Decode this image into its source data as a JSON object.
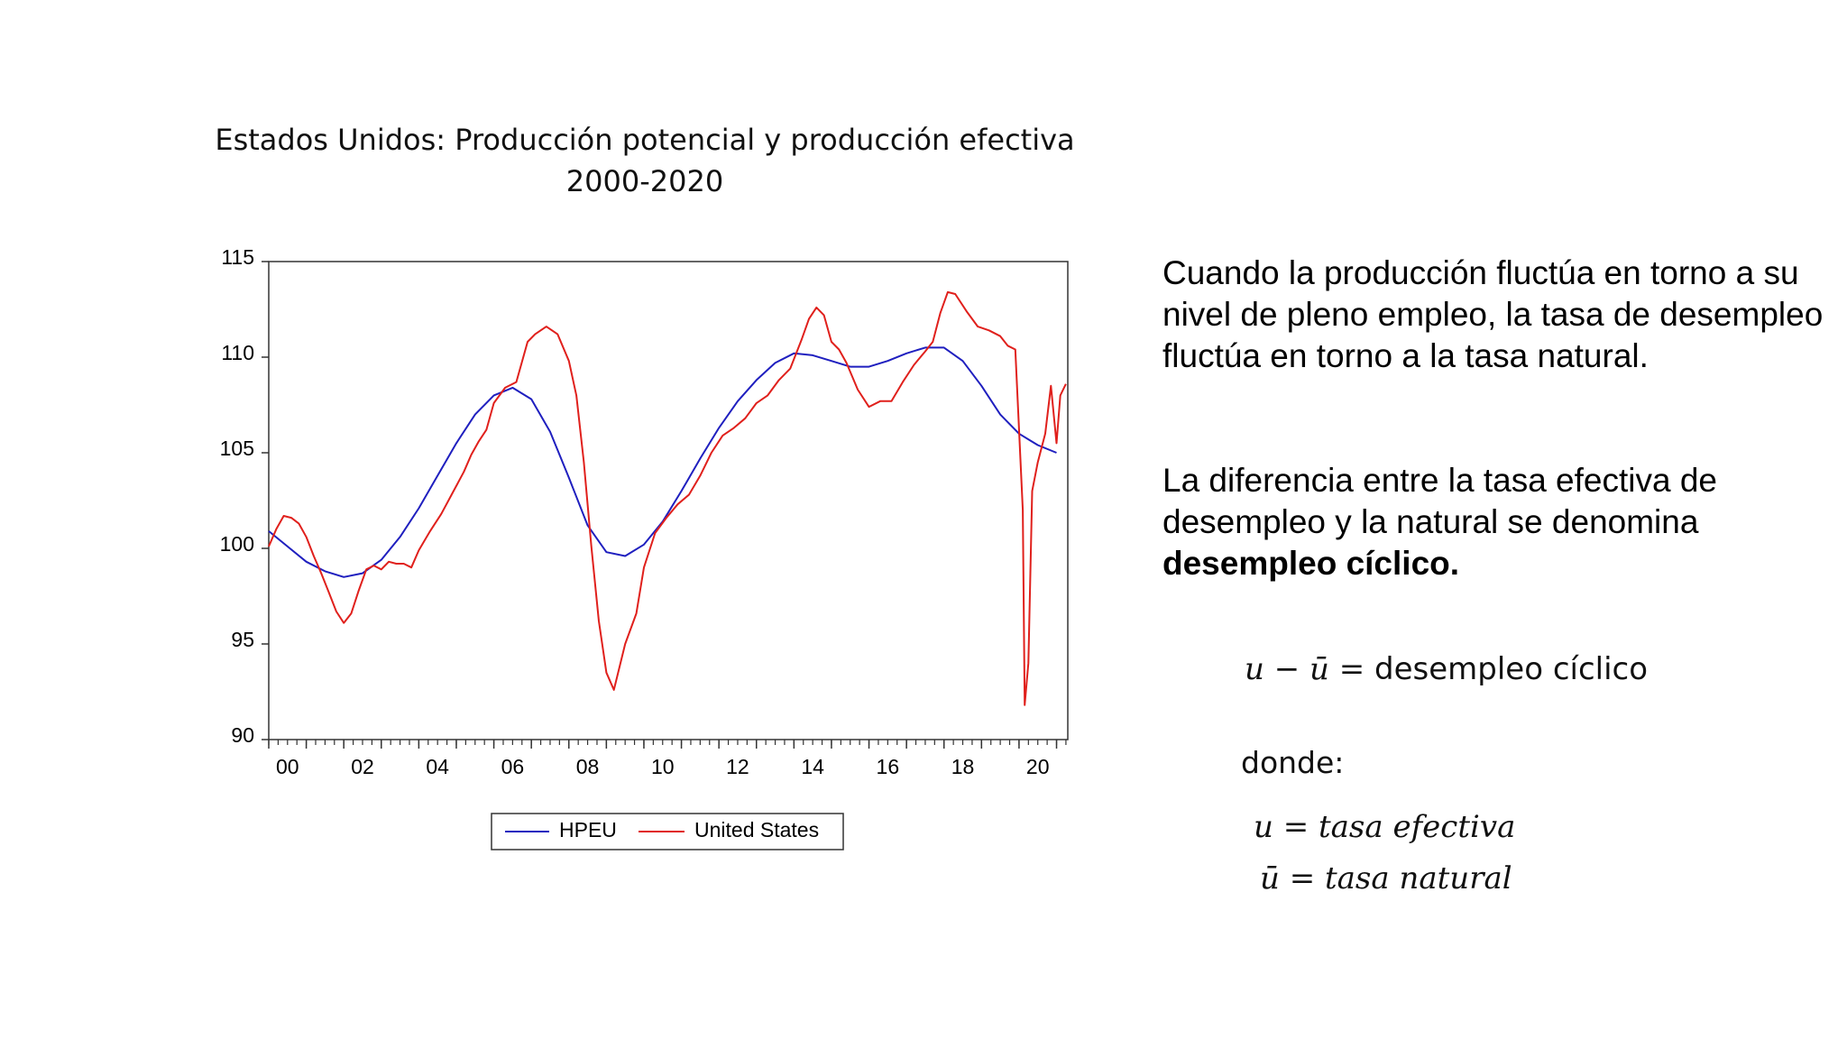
{
  "chart_title_line1": "Estados Unidos: Producción potencial y producción efectiva",
  "chart_title_line2": "2000-2020",
  "paragraph1": "Cuando la producción fluctúa en torno a su nivel de pleno empleo, la tasa de desempleo fluctúa en torno a la tasa natural.",
  "paragraph2_normal": "La diferencia entre la tasa efectiva de desempleo y la natural se denomina ",
  "paragraph2_bold": "desempleo cíclico.",
  "equation_lhs": "u − ū =",
  "equation_rhs": "desempleo cíclico",
  "donde_label": "donde:",
  "def_u": "u = tasa efectiva",
  "def_ubar": "ū = tasa natural",
  "colors": {
    "HPEU": "#1f1fbf",
    "United States": "#e0201c",
    "axis": "#333333"
  },
  "chart_data": {
    "type": "line",
    "title": "Estados Unidos: Producción potencial y producción efectiva 2000-2020",
    "xlabel": "",
    "ylabel": "",
    "xlim": [
      2000,
      2021.3
    ],
    "ylim": [
      90,
      115
    ],
    "yticks": [
      90,
      95,
      100,
      105,
      110,
      115
    ],
    "xtick_labels": [
      "00",
      "02",
      "04",
      "06",
      "08",
      "10",
      "12",
      "14",
      "16",
      "18",
      "20"
    ],
    "xtick_years": [
      2000,
      2002,
      2004,
      2006,
      2008,
      2010,
      2012,
      2014,
      2016,
      2018,
      2020
    ],
    "grid": false,
    "legend_position": "bottom-center",
    "series": [
      {
        "name": "HPEU",
        "x": [
          2000.0,
          2000.5,
          2001.0,
          2001.5,
          2002.0,
          2002.5,
          2003.0,
          2003.5,
          2004.0,
          2004.5,
          2005.0,
          2005.5,
          2006.0,
          2006.5,
          2007.0,
          2007.5,
          2008.0,
          2008.5,
          2009.0,
          2009.5,
          2010.0,
          2010.5,
          2011.0,
          2011.5,
          2012.0,
          2012.5,
          2013.0,
          2013.5,
          2014.0,
          2014.5,
          2015.0,
          2015.5,
          2016.0,
          2016.5,
          2017.0,
          2017.5,
          2018.0,
          2018.5,
          2019.0,
          2019.5,
          2020.0,
          2020.5,
          2021.0
        ],
        "values": [
          100.9,
          100.1,
          99.3,
          98.8,
          98.5,
          98.7,
          99.4,
          100.6,
          102.1,
          103.8,
          105.5,
          107.0,
          108.0,
          108.4,
          107.8,
          106.1,
          103.7,
          101.2,
          99.8,
          99.6,
          100.2,
          101.4,
          103.0,
          104.7,
          106.3,
          107.7,
          108.8,
          109.7,
          110.2,
          110.1,
          109.8,
          109.5,
          109.5,
          109.8,
          110.2,
          110.5,
          110.5,
          109.8,
          108.5,
          107.0,
          106.0,
          105.4,
          105.0
        ]
      },
      {
        "name": "United States",
        "x": [
          2000.0,
          2000.2,
          2000.4,
          2000.6,
          2000.8,
          2001.0,
          2001.2,
          2001.4,
          2001.6,
          2001.8,
          2002.0,
          2002.2,
          2002.4,
          2002.6,
          2002.8,
          2003.0,
          2003.2,
          2003.4,
          2003.6,
          2003.8,
          2004.0,
          2004.3,
          2004.6,
          2004.9,
          2005.2,
          2005.4,
          2005.6,
          2005.8,
          2006.0,
          2006.3,
          2006.6,
          2006.9,
          2007.1,
          2007.4,
          2007.7,
          2008.0,
          2008.2,
          2008.4,
          2008.6,
          2008.8,
          2009.0,
          2009.2,
          2009.5,
          2009.8,
          2010.0,
          2010.3,
          2010.6,
          2010.9,
          2011.2,
          2011.5,
          2011.8,
          2012.1,
          2012.4,
          2012.7,
          2013.0,
          2013.3,
          2013.6,
          2013.9,
          2014.2,
          2014.4,
          2014.6,
          2014.8,
          2015.0,
          2015.2,
          2015.4,
          2015.7,
          2016.0,
          2016.3,
          2016.6,
          2016.9,
          2017.2,
          2017.5,
          2017.7,
          2017.9,
          2018.1,
          2018.3,
          2018.6,
          2018.9,
          2019.2,
          2019.5,
          2019.7,
          2019.9,
          2020.1,
          2020.15,
          2020.25,
          2020.35,
          2020.5,
          2020.7,
          2020.85,
          2021.0,
          2021.1,
          2021.25
        ],
        "values": [
          100.1,
          101.0,
          101.7,
          101.6,
          101.3,
          100.6,
          99.6,
          98.7,
          97.7,
          96.7,
          96.1,
          96.6,
          97.8,
          98.9,
          99.1,
          98.9,
          99.3,
          99.2,
          99.2,
          99.0,
          99.9,
          100.9,
          101.8,
          102.9,
          104.0,
          104.9,
          105.6,
          106.2,
          107.6,
          108.4,
          108.7,
          110.8,
          111.2,
          111.6,
          111.2,
          109.8,
          108.0,
          104.5,
          100.1,
          96.2,
          93.5,
          92.6,
          95.0,
          96.6,
          99.0,
          100.8,
          101.6,
          102.3,
          102.8,
          103.8,
          105.0,
          105.9,
          106.3,
          106.8,
          107.6,
          108.0,
          108.8,
          109.4,
          110.9,
          112.0,
          112.6,
          112.2,
          110.8,
          110.4,
          109.7,
          108.3,
          107.4,
          107.7,
          107.7,
          108.7,
          109.6,
          110.3,
          110.8,
          112.3,
          113.4,
          113.3,
          112.4,
          111.6,
          111.4,
          111.1,
          110.6,
          110.4,
          102.0,
          91.8,
          94.0,
          103.0,
          104.5,
          106.0,
          108.5,
          105.5,
          108.0,
          108.6
        ]
      }
    ]
  }
}
